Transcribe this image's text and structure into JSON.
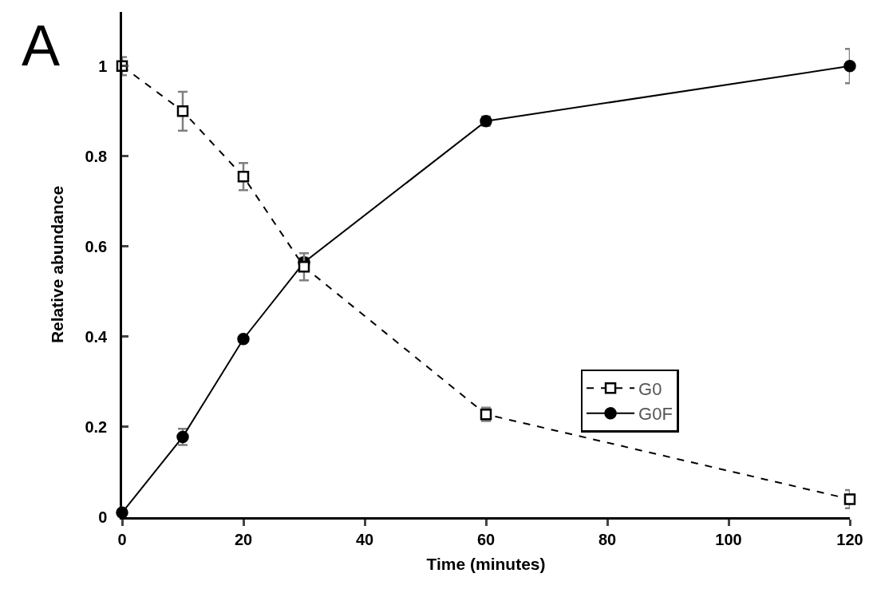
{
  "chart_data": {
    "type": "line",
    "xlabel": "Time (minutes)",
    "ylabel": "Relative abundance",
    "annotations": [
      "A"
    ],
    "x": [
      0,
      10,
      20,
      30,
      60,
      120
    ],
    "series": [
      {
        "name": "G0",
        "color": "#000000",
        "values": [
          1.0,
          0.9,
          0.755,
          0.555,
          0.228,
          0.04
        ],
        "errors": [
          0.02,
          0.043,
          0.03,
          0.03,
          0.015,
          0.02
        ],
        "marker": "square",
        "line_style": "dashed"
      },
      {
        "name": "G0F",
        "color": "#000000",
        "values": [
          0.01,
          0.178,
          0.395,
          0.565,
          0.878,
          1.0
        ],
        "errors": [
          0.005,
          0.018,
          0.005,
          0.01,
          0.01,
          0.038
        ],
        "marker": "circle",
        "line_style": "solid"
      }
    ],
    "xlim": [
      0,
      120
    ],
    "xticks": [
      0,
      20,
      40,
      60,
      80,
      100,
      120
    ],
    "ylim": [
      0,
      1.12
    ],
    "yticks": [
      0,
      0.2,
      0.4,
      0.6,
      0.8,
      1
    ],
    "grid": false,
    "legend": "right"
  }
}
